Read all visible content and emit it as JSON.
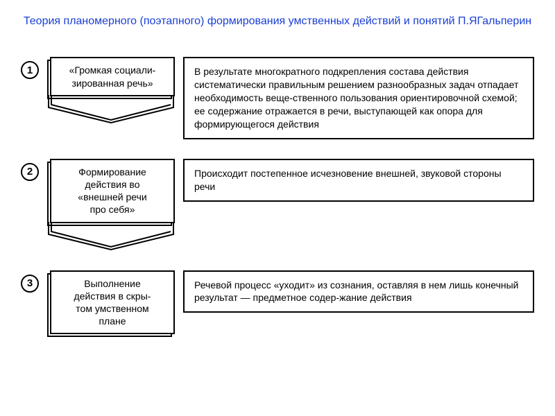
{
  "title": "Теория планомерного (поэтапного) формирования умственных действий и понятий П.ЯГальперин",
  "title_color": "#1a3fd4",
  "border_color": "#000000",
  "background_color": "#ffffff",
  "font_family": "Arial",
  "rows": [
    {
      "num": "1",
      "stage": "«Громкая социали-\nзированная речь»",
      "has_arrow": true,
      "desc": "В результате многократного подкрепления состава действия систематически правильным решением разнообразных задач отпадает необходимость веще-ственного пользования ориентировочной схемой; ее содержание отражается в речи, выступающей как опора для формирующегося действия"
    },
    {
      "num": "2",
      "stage": "Формирование\nдействия во\n«внешней речи\nпро себя»",
      "has_arrow": true,
      "desc": "Происходит постепенное исчезновение внешней, звуковой стороны речи"
    },
    {
      "num": "3",
      "stage": "Выполнение\nдействия в скры-\nтом умственном\nплане",
      "has_arrow": false,
      "desc": "Речевой процесс «уходит» из сознания, оставляя в нем лишь конечный результат — предметное содер-жание действия"
    }
  ]
}
